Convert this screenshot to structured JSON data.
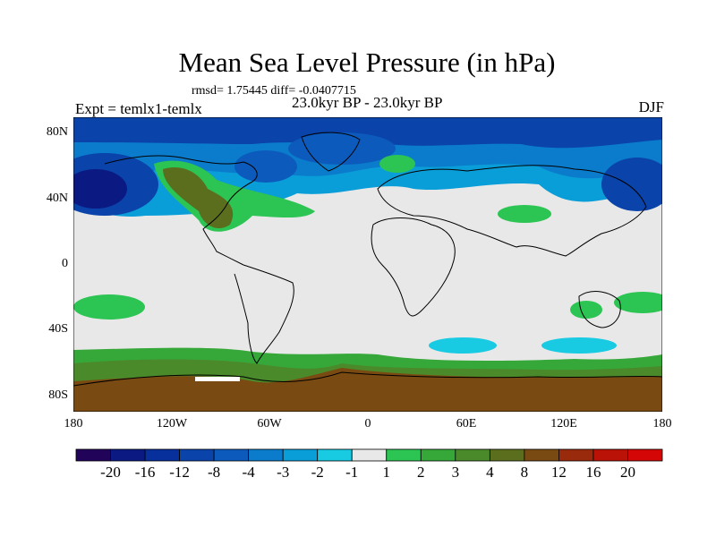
{
  "title": "Mean Sea Level Pressure (in hPa)",
  "stats_text": "rmsd= 1.75445 diff= -0.0407715",
  "period_text": "23.0kyr BP - 23.0kyr BP",
  "experiment_text": "Expt = temlx1-temlx",
  "season_text": "DJF",
  "chart_data": {
    "type": "heatmap",
    "title": "Mean Sea Level Pressure (in hPa)",
    "projection": "cylindrical equidistant",
    "x_range": [
      -180,
      180
    ],
    "y_range": [
      -90,
      90
    ],
    "lat_tick_labels": [
      "80N",
      "40N",
      "0",
      "40S",
      "80S"
    ],
    "lon_tick_labels": [
      "180",
      "120W",
      "60W",
      "0",
      "60E",
      "120E",
      "180"
    ],
    "colorbar": {
      "labels": [
        "-20",
        "-16",
        "-12",
        "-8",
        "-4",
        "-3",
        "-2",
        "-1",
        "1",
        "2",
        "3",
        "4",
        "8",
        "12",
        "16",
        "20"
      ],
      "colors": [
        "#21045a",
        "#0b1a82",
        "#08309c",
        "#0a43aa",
        "#0c5bbc",
        "#0b7ccc",
        "#0a9ed9",
        "#18cbe3",
        "#e8e8e8",
        "#2cc452",
        "#36a83a",
        "#4a8a2a",
        "#5b6e1e",
        "#7a4a13",
        "#9a2a0c",
        "#bb1208",
        "#d40606"
      ]
    },
    "regions": [
      {
        "name": "arctic-low",
        "color": "#0c5bbc"
      },
      {
        "name": "north-pacific-low",
        "color": "#0a43aa"
      },
      {
        "name": "north-america-high",
        "color": "#5b6e1e"
      },
      {
        "name": "antarctic-high",
        "color": "#5b6e1e"
      },
      {
        "name": "southern-ocean-ring",
        "color": "#36a83a"
      },
      {
        "name": "south-indian-ocean-low",
        "color": "#18cbe3"
      }
    ]
  }
}
